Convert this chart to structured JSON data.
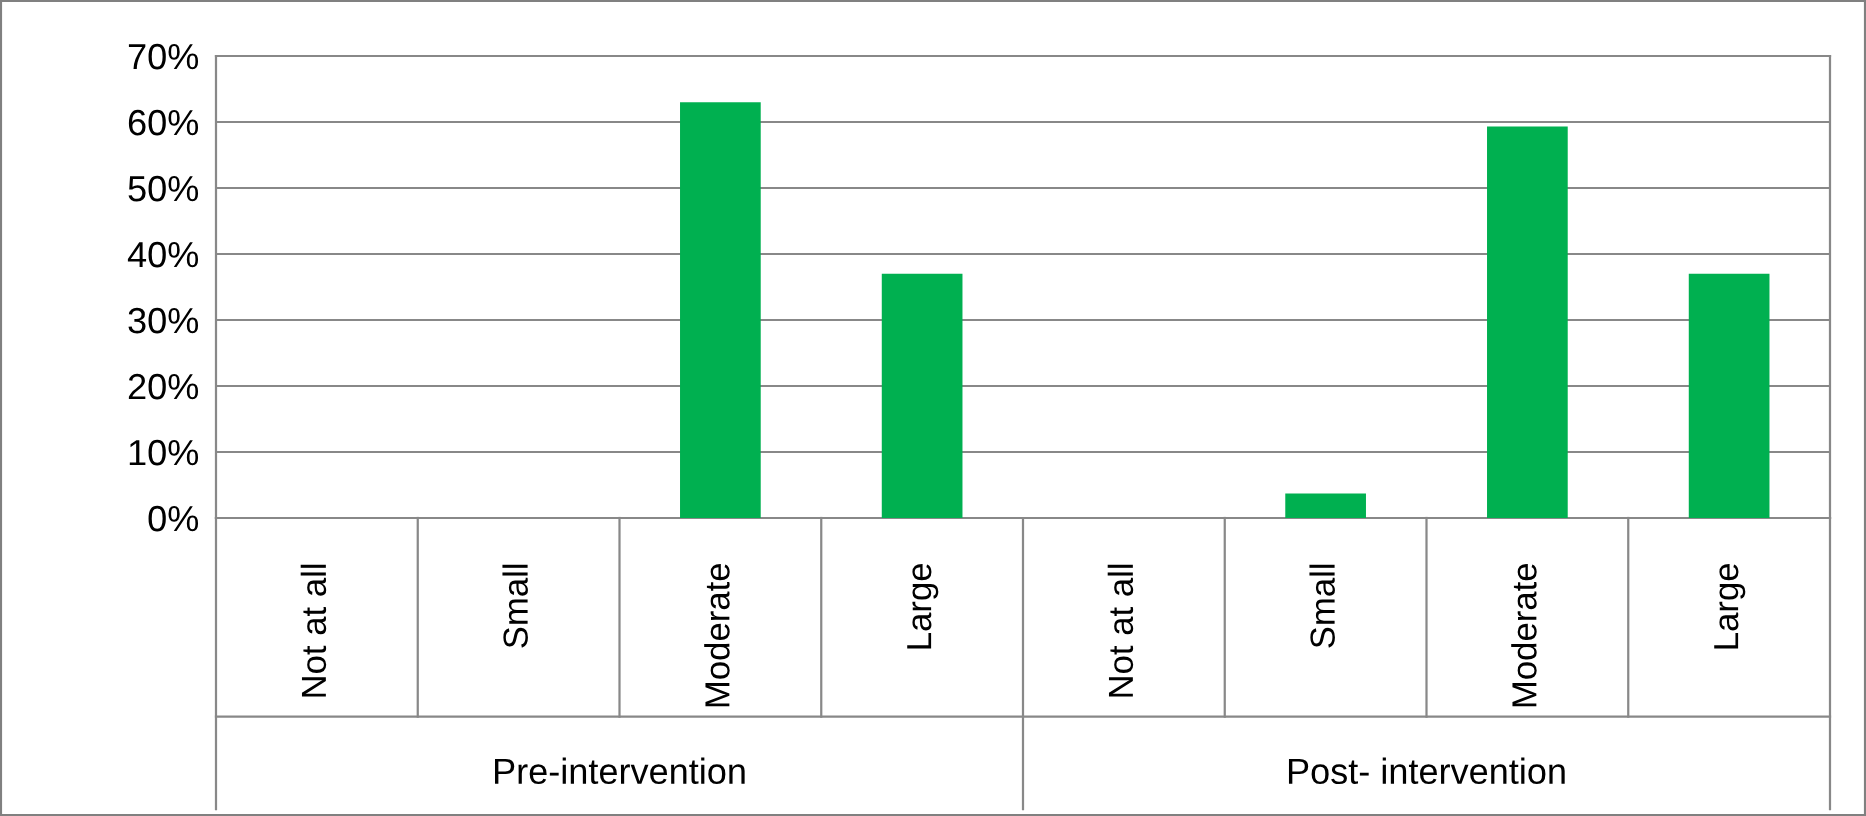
{
  "chart_data": {
    "type": "bar",
    "categories": [
      "Not at all",
      "Small",
      "Moderate",
      "Large",
      "Not at all",
      "Small",
      "Moderate",
      "Large"
    ],
    "values": [
      0,
      0,
      63,
      37,
      0,
      3.7,
      59.3,
      37
    ],
    "color": "#00b050",
    "ylim": [
      0,
      70
    ],
    "yticks": [
      {
        "value": 0,
        "label": "0%"
      },
      {
        "value": 10,
        "label": "10%"
      },
      {
        "value": 20,
        "label": "20%"
      },
      {
        "value": 30,
        "label": "30%"
      },
      {
        "value": 40,
        "label": "40%"
      },
      {
        "value": 50,
        "label": "50%"
      },
      {
        "value": 60,
        "label": "60%"
      },
      {
        "value": 70,
        "label": "70%"
      }
    ],
    "grid": "y",
    "annotations": [
      "Pre-intervention",
      "Post- intervention"
    ]
  }
}
